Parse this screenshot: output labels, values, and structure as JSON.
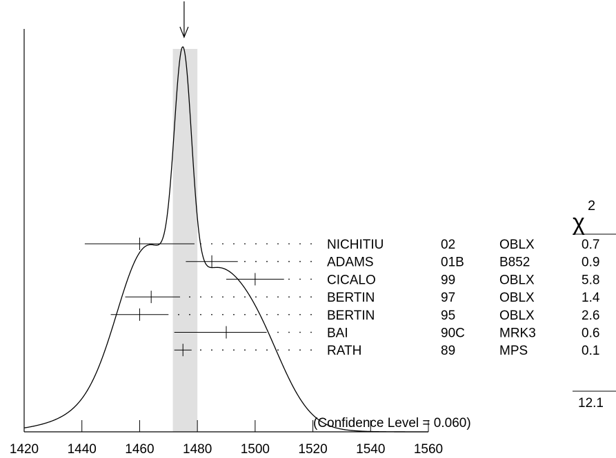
{
  "chart_data": {
    "type": "ideogram",
    "xlim": [
      1420,
      1560
    ],
    "x_ticks": [
      1420,
      1440,
      1460,
      1480,
      1500,
      1520,
      1540,
      1560
    ],
    "x_tick_labels": [
      "1420",
      "1440",
      "1460",
      "1480",
      "1500",
      "1520",
      "1540",
      "1560"
    ],
    "weighted_average": 1475.4,
    "error_band": [
      1471.5,
      1480
    ],
    "chi2_header": "χ",
    "chi2_exponent": "2",
    "measurements": [
      {
        "author": "NICHITIU",
        "year": "02",
        "technique": "OBLX",
        "chi2": "0.7",
        "value": 1460,
        "lo": 1441,
        "hi": 1479
      },
      {
        "author": "ADAMS",
        "year": "01B",
        "technique": "B852",
        "chi2": "0.9",
        "value": 1485,
        "lo": 1476,
        "hi": 1494
      },
      {
        "author": "CICALO",
        "year": "99",
        "technique": "OBLX",
        "chi2": "5.8",
        "value": 1500,
        "lo": 1490,
        "hi": 1510
      },
      {
        "author": "BERTIN",
        "year": "97",
        "technique": "OBLX",
        "chi2": "1.4",
        "value": 1464,
        "lo": 1455,
        "hi": 1474
      },
      {
        "author": "BERTIN",
        "year": "95",
        "technique": "OBLX",
        "chi2": "2.6",
        "value": 1460,
        "lo": 1450,
        "hi": 1470
      },
      {
        "author": "BAI",
        "year": "90C",
        "technique": "MRK3",
        "chi2": "0.6",
        "value": 1490,
        "lo": 1472,
        "hi": 1504
      },
      {
        "author": "RATH",
        "year": "89",
        "technique": "MPS",
        "chi2": "0.1",
        "value": 1475,
        "lo": 1472,
        "hi": 1478
      }
    ],
    "chi2_total": "12.1",
    "confidence_level": "(Confidence Level = 0.060)"
  }
}
